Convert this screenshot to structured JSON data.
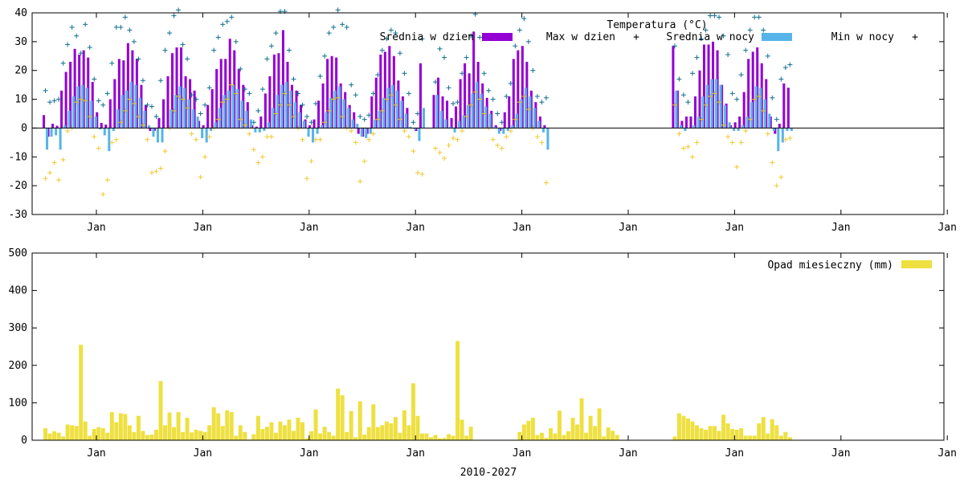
{
  "colors": {
    "day_avg": "#9400d3",
    "day_max": "#0f6f8f",
    "night_avg": "#56b4e9",
    "night_min": "#f0c830",
    "rain": "#eee040"
  },
  "chart_data": [
    {
      "type": "bar",
      "title": "Temperatura (°C)",
      "ylim": [
        -30,
        40
      ],
      "yticks": [
        -30,
        -20,
        -10,
        0,
        10,
        20,
        30,
        40
      ],
      "xticks": [
        "Jan",
        "Jan",
        "Jan",
        "Jan",
        "Jan",
        "Jan",
        "Jan",
        "Jan",
        "Jan"
      ],
      "legend_position": "top-right",
      "legend": [
        "Srednia w dzien",
        "Max w dzien",
        "Srednia w nocy",
        "Min w nocy"
      ],
      "gaps": [
        "2018-01..2021-10"
      ],
      "series": [
        {
          "name": "Srednia w dzien",
          "kind": "bar",
          "start": "2010-01",
          "values": [
            4.5,
            -3,
            1.5,
            0.8,
            13,
            19.5,
            23,
            27.5,
            25.5,
            27,
            24.5,
            16,
            5.5,
            1.8,
            1.2,
            10,
            17,
            24,
            23.5,
            29.5,
            27,
            24,
            15,
            8,
            -1,
            -1,
            3.5,
            10,
            18,
            26,
            28,
            28,
            18,
            17,
            13,
            2.5,
            1,
            8,
            13.5,
            20.5,
            24,
            24,
            31,
            27,
            20.5,
            15,
            9,
            1,
            0.5,
            4,
            12,
            18,
            25.5,
            26,
            34,
            23,
            15,
            13,
            8,
            3,
            1,
            3,
            9.5,
            15.5,
            24,
            25,
            24.5,
            15.5,
            12.5,
            8,
            5.5,
            -2,
            -3,
            -2,
            11,
            17.5,
            25.5,
            26.5,
            28.5,
            25,
            16.5,
            11,
            7,
            0,
            -1,
            22.5,
            null,
            null,
            11.5,
            17.5,
            11,
            9.5,
            3.5,
            7.5,
            17,
            22.5,
            19,
            33.5,
            23,
            15.5,
            10.5,
            6,
            1,
            -1,
            5.5,
            11,
            24,
            27,
            28.5,
            23,
            13,
            9,
            4,
            1
          ],
          "start2": "2021-11",
          "values2": [
            28.5,
            13,
            2.5,
            4,
            4,
            11,
            20,
            29,
            29,
            30,
            27,
            15,
            8.5,
            1,
            2,
            4,
            12.5,
            24,
            26.5,
            28,
            22.5,
            17,
            4,
            -2,
            1.5,
            15.5,
            14
          ]
        },
        {
          "name": "Max w dzien",
          "kind": "points",
          "start": "2010-01",
          "values": [
            13,
            9,
            9.5,
            10,
            22.5,
            29,
            35,
            32,
            26,
            36,
            28,
            17,
            9.5,
            8,
            12,
            22.5,
            35,
            35,
            38.5,
            34,
            30,
            24,
            16.5,
            8,
            7.5,
            4,
            16.5,
            27,
            33,
            39,
            41,
            29,
            24,
            11.5,
            10,
            5,
            8,
            14,
            27,
            31.5,
            36,
            37,
            38.5,
            30,
            20.5,
            13.5,
            12,
            2,
            6,
            13.5,
            24,
            28.5,
            33,
            40.5,
            40.5,
            27,
            17,
            12,
            8,
            4,
            2,
            8.5,
            18,
            25,
            33,
            35,
            41,
            36,
            35,
            15,
            11.5,
            4,
            3,
            4.5,
            12,
            18.5,
            27,
            31,
            34,
            33,
            26,
            19,
            12,
            2,
            5,
            31,
            null,
            null,
            16,
            27.5,
            24.5,
            14,
            8.5,
            9,
            19,
            24.5,
            32,
            39.5,
            31.5,
            19,
            13,
            10,
            5,
            2,
            11,
            15.5,
            28.5,
            34,
            38,
            30,
            20,
            11,
            9,
            10.5
          ],
          "start2": "2021-11",
          "values2": [
            28.5,
            17,
            11.5,
            9,
            19,
            24.5,
            31,
            34,
            39,
            39,
            38.5,
            32,
            25.5,
            12,
            10,
            18.5,
            27,
            34,
            38.5,
            38.5,
            34,
            25,
            10.5,
            3,
            17,
            21,
            22
          ]
        },
        {
          "name": "Srednia w nocy",
          "kind": "bar",
          "start": "2010-01",
          "values": [
            -7.5,
            -3,
            -2.5,
            -7.5,
            1,
            6,
            11,
            14.5,
            15,
            14,
            9.5,
            4,
            -0.5,
            -2.5,
            -8,
            -1,
            6.5,
            11.5,
            13,
            16,
            15,
            10.5,
            6,
            1,
            -3,
            -5,
            -5,
            0,
            6.5,
            11.5,
            14.5,
            14,
            10,
            6.5,
            4,
            -3.5,
            -5,
            -1,
            2,
            7,
            11.5,
            13,
            15,
            13.5,
            9.5,
            6,
            3,
            -1.5,
            -1.5,
            -1,
            2,
            7,
            11.5,
            15,
            16,
            13,
            9,
            5.5,
            2.5,
            -3,
            -5,
            -2,
            1,
            5.5,
            10.5,
            13,
            14.5,
            10,
            7,
            3,
            1.5,
            -3,
            -3.5,
            -2,
            3,
            6,
            10.5,
            14,
            15,
            13,
            9.5,
            5,
            0.5,
            -0.5,
            -4.5,
            7,
            null,
            null,
            11.5,
            6,
            3,
            0.5,
            -1.5,
            2.5,
            4.5,
            8,
            12,
            16,
            12,
            7.5,
            5,
            0.5,
            -2,
            -2,
            -1,
            1,
            5,
            10,
            14,
            11,
            7,
            2.5,
            -1.5,
            -7.5
          ],
          "start2": "2021-11",
          "values2": [
            13,
            1,
            -1,
            0,
            1,
            4,
            11,
            15,
            17,
            17,
            15,
            8,
            2,
            -1,
            -1,
            1,
            4,
            9,
            14.5,
            14,
            10,
            5,
            -1,
            -8,
            -5,
            -1,
            -1
          ]
        },
        {
          "name": "Min w nocy",
          "kind": "points",
          "start": "2010-01",
          "values": [
            -17.5,
            -15.5,
            -12,
            -18,
            -11,
            -1,
            0,
            9,
            10,
            9.5,
            4,
            -3,
            -7,
            -23,
            -18,
            -5,
            -4,
            2,
            6,
            10,
            8.5,
            4,
            1,
            -4,
            -15.5,
            -15,
            -14,
            -8,
            0,
            6,
            11,
            10,
            7,
            -2,
            -4,
            -17,
            -10,
            -3,
            0,
            3,
            9,
            10,
            15,
            12,
            3,
            1,
            -2,
            -7.5,
            -12,
            -10,
            -3,
            -3,
            5,
            8,
            12,
            8,
            4,
            0,
            -4,
            -17.5,
            -11.5,
            -4,
            -4,
            2,
            6,
            10,
            10.5,
            4,
            0,
            -1,
            -5,
            -18.5,
            -11.5,
            -4,
            -2,
            3,
            6,
            10,
            11.5,
            8,
            3,
            -1,
            -3,
            -8,
            -15.5,
            -16,
            null,
            null,
            -7,
            -8.5,
            -10.5,
            -6,
            -3.5,
            -4,
            -1,
            4,
            8,
            12.5,
            10,
            5,
            0,
            -4,
            -6,
            -7,
            -3,
            -1,
            3,
            9,
            11,
            6.5,
            0,
            -3,
            -5,
            -19
          ],
          "start2": "2021-11",
          "values2": [
            8,
            -2,
            -7,
            -6.5,
            -10,
            -5,
            3,
            8,
            11,
            12,
            9,
            1,
            -3,
            -5,
            -13.5,
            -5,
            -1,
            3,
            10,
            11,
            6,
            -2,
            -12,
            -20,
            -17,
            -4,
            -3.5
          ]
        }
      ]
    },
    {
      "type": "bar",
      "ylim": [
        0,
        500
      ],
      "yticks": [
        0,
        100,
        200,
        300,
        400,
        500
      ],
      "xticks": [
        "Jan",
        "Jan",
        "Jan",
        "Jan",
        "Jan",
        "Jan",
        "Jan",
        "Jan",
        "Jan"
      ],
      "xlabel": "2010-2027",
      "legend_position": "top-right",
      "legend": [
        "Opad miesieczny (mm)"
      ],
      "series": [
        {
          "name": "Opad miesieczny (mm)",
          "start": "2010-01",
          "values": [
            32,
            18,
            24,
            20,
            10,
            42,
            40,
            38,
            255,
            50,
            12,
            30,
            35,
            32,
            20,
            75,
            48,
            72,
            70,
            40,
            22,
            65,
            25,
            14,
            15,
            28,
            158,
            40,
            74,
            35,
            75,
            22,
            60,
            21,
            28,
            25,
            22,
            40,
            88,
            72,
            38,
            80,
            75,
            12,
            40,
            22,
            2,
            16,
            65,
            30,
            36,
            48,
            20,
            50,
            40,
            55,
            25,
            60,
            48,
            5,
            24,
            82,
            18,
            36,
            22,
            12,
            138,
            120,
            22,
            78,
            8,
            104,
            15,
            35,
            96,
            35,
            40,
            50,
            45,
            62,
            20,
            80,
            40,
            152,
            65,
            18,
            18,
            8,
            14,
            5,
            6,
            16,
            12,
            265,
            55,
            12,
            36,
            0,
            0,
            0,
            0,
            0,
            0,
            0,
            0,
            0,
            0,
            22,
            42,
            52,
            60,
            14,
            20,
            6,
            32,
            18,
            79,
            14,
            24,
            60,
            42,
            112,
            20,
            65,
            38,
            85,
            10,
            34,
            25,
            14
          ],
          "start2": "2021-11",
          "values2": [
            10,
            72,
            65,
            58,
            50,
            40,
            32,
            28,
            38,
            38,
            25,
            68,
            45,
            30,
            28,
            32,
            12,
            12,
            12,
            45,
            62,
            18,
            56,
            40,
            12,
            22,
            8
          ]
        }
      ]
    }
  ]
}
